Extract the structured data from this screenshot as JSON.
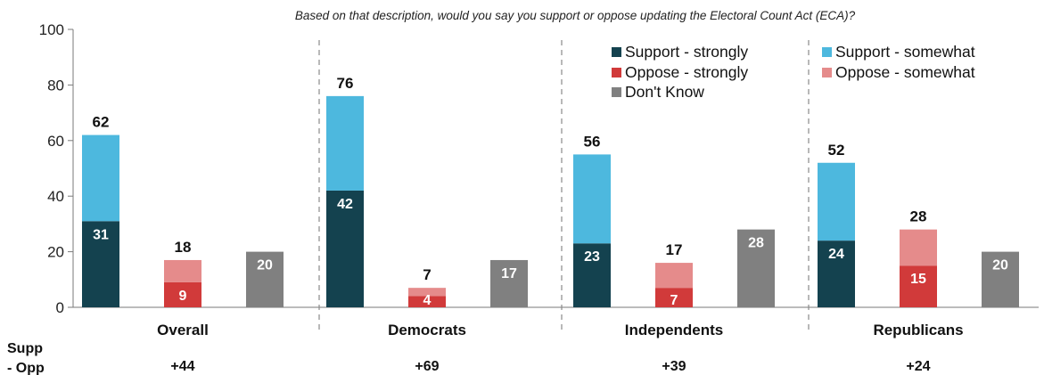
{
  "chart_data": {
    "type": "bar",
    "title": "Based on that description, would you say you support or oppose updating the Electoral Count Act (ECA)?",
    "ylim": [
      0,
      100
    ],
    "yticks": [
      0,
      20,
      40,
      60,
      80,
      100
    ],
    "groups": [
      "Overall",
      "Democrats",
      "Independents",
      "Republicans"
    ],
    "series": [
      {
        "name": "Support - strongly",
        "color": "#14424f",
        "values": [
          31,
          42,
          23,
          24
        ]
      },
      {
        "name": "Support - somewhat",
        "color": "#4db8de",
        "values": [
          31,
          34,
          32,
          28
        ]
      },
      {
        "name": "Oppose - strongly",
        "color": "#d13a3a",
        "values": [
          9,
          4,
          7,
          15
        ]
      },
      {
        "name": "Oppose - somewhat",
        "color": "#e58b8b",
        "values": [
          8,
          3,
          9,
          13
        ]
      },
      {
        "name": "Don't Know",
        "color": "#808080",
        "values": [
          20,
          17,
          28,
          20
        ]
      }
    ],
    "bar_labels": {
      "support_strongly": [
        "31",
        "42",
        "23",
        "24"
      ],
      "support_total": [
        "62",
        "76",
        "56",
        "52"
      ],
      "oppose_strongly": [
        "9",
        "4",
        "7",
        "15"
      ],
      "oppose_total": [
        "18",
        "7",
        "17",
        "28"
      ],
      "dont_know": [
        "20",
        "17",
        "28",
        "20"
      ]
    },
    "net_label": "Supp - Opp",
    "net_values": [
      "+44",
      "+69",
      "+39",
      "+24"
    ],
    "legend": {
      "position": "top-right",
      "columns": [
        [
          "Support - strongly",
          "Oppose - strongly",
          "Don't Know"
        ],
        [
          "Support - somewhat",
          "Oppose - somewhat"
        ]
      ]
    },
    "grid": false
  }
}
